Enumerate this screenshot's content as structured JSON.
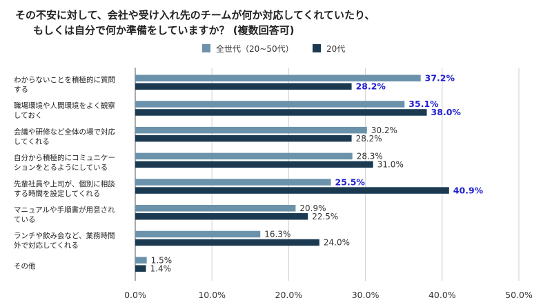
{
  "chart_data": {
    "type": "bar",
    "orientation": "horizontal",
    "title_lines": [
      "その不安に対して、会社や受け入れ先のチームが何か対応してくれていたり、",
      "もしくは自分で何か準備をしていますか？ (複数回答可)"
    ],
    "categories": [
      [
        "わからないことを積極的に質問",
        "する"
      ],
      [
        "職場環境や人間環境をよく観察",
        "しておく"
      ],
      [
        "会議や研修など全体の場で対応",
        "してくれる"
      ],
      [
        "自分から積極的にコミュニケー",
        "ションをとるようにしている"
      ],
      [
        "先輩社員や上司が、個別に相談",
        "する時間を設定してくれる"
      ],
      [
        "マニュアルや手順書が用意され",
        "ている"
      ],
      [
        "ランチや飲み会など、業務時間",
        "外で対応してくれる"
      ],
      [
        "その他"
      ]
    ],
    "series": [
      {
        "name": "全世代（20~50代）",
        "color": "#6b92ab",
        "values": [
          37.2,
          35.1,
          30.2,
          28.3,
          25.5,
          20.9,
          16.3,
          1.5
        ],
        "labels": [
          "37.2%",
          "35.1%",
          "30.2%",
          "28.3%",
          "25.5%",
          "20.9%",
          "16.3%",
          "1.5%"
        ],
        "highlight": [
          true,
          true,
          false,
          false,
          true,
          false,
          false,
          false
        ]
      },
      {
        "name": "20代",
        "color": "#1b3a52",
        "values": [
          28.2,
          38.0,
          28.2,
          31.0,
          40.9,
          22.5,
          24.0,
          1.4
        ],
        "labels": [
          "28.2%",
          "38.0%",
          "28.2%",
          "31.0%",
          "40.9%",
          "22.5%",
          "24.0%",
          "1.4%"
        ],
        "highlight": [
          true,
          true,
          false,
          false,
          true,
          false,
          false,
          false
        ]
      }
    ],
    "xlim": [
      0,
      50
    ],
    "xticks": [
      "0.0%",
      "10.0%",
      "20.0%",
      "30.0%",
      "40.0%",
      "50.0%"
    ],
    "grid": true,
    "legend_position": "top-center",
    "highlight_color": "#1f1fd0"
  }
}
